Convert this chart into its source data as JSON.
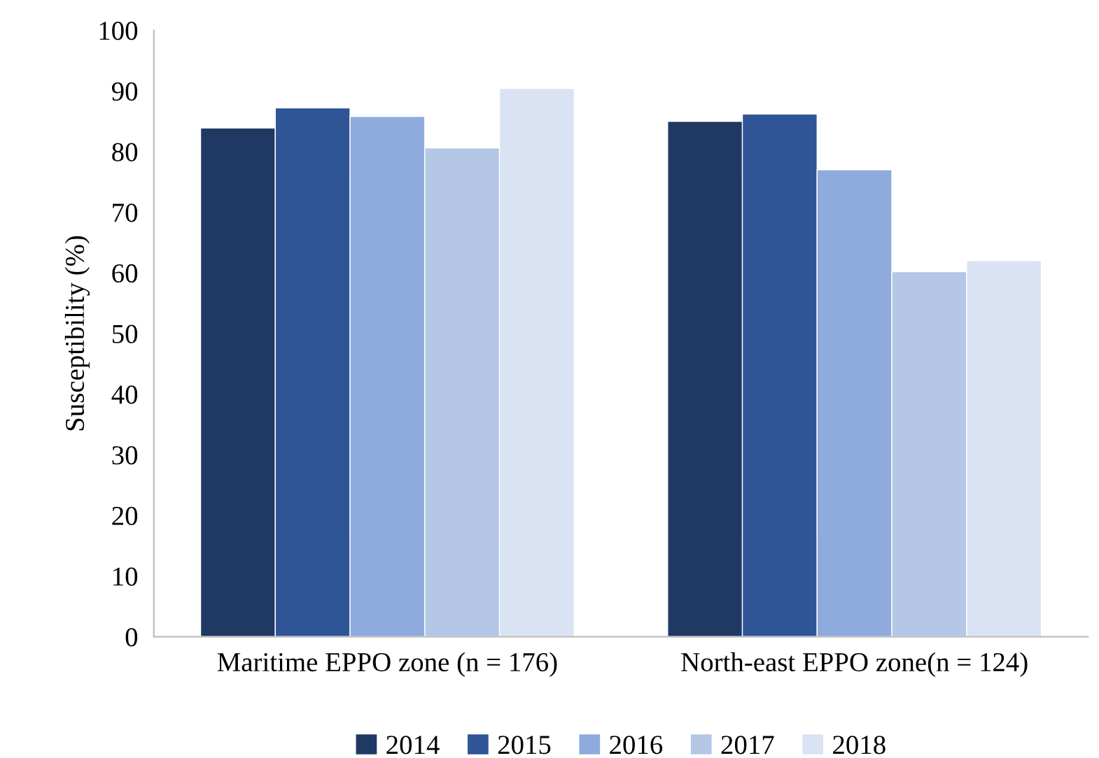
{
  "chart_data": {
    "type": "bar",
    "ylabel": "Susceptibility (%)",
    "categories": [
      "Maritime EPPO zone (n = 176)",
      "North-east EPPO zone(n = 124)"
    ],
    "series": [
      {
        "name": "2014",
        "color": "#203864",
        "values": [
          83.9,
          85.0
        ]
      },
      {
        "name": "2015",
        "color": "#2f5597",
        "values": [
          87.2,
          86.2
        ]
      },
      {
        "name": "2016",
        "color": "#8faadc",
        "values": [
          85.8,
          77.0
        ]
      },
      {
        "name": "2017",
        "color": "#b4c7e7",
        "values": [
          80.6,
          60.2
        ]
      },
      {
        "name": "2018",
        "color": "#dae3f3",
        "values": [
          90.4,
          62.0
        ]
      }
    ],
    "ylim": [
      0,
      100
    ],
    "yticks": [
      0,
      10,
      20,
      30,
      40,
      50,
      60,
      70,
      80,
      90,
      100
    ],
    "grid": false,
    "legend": "bottom"
  }
}
